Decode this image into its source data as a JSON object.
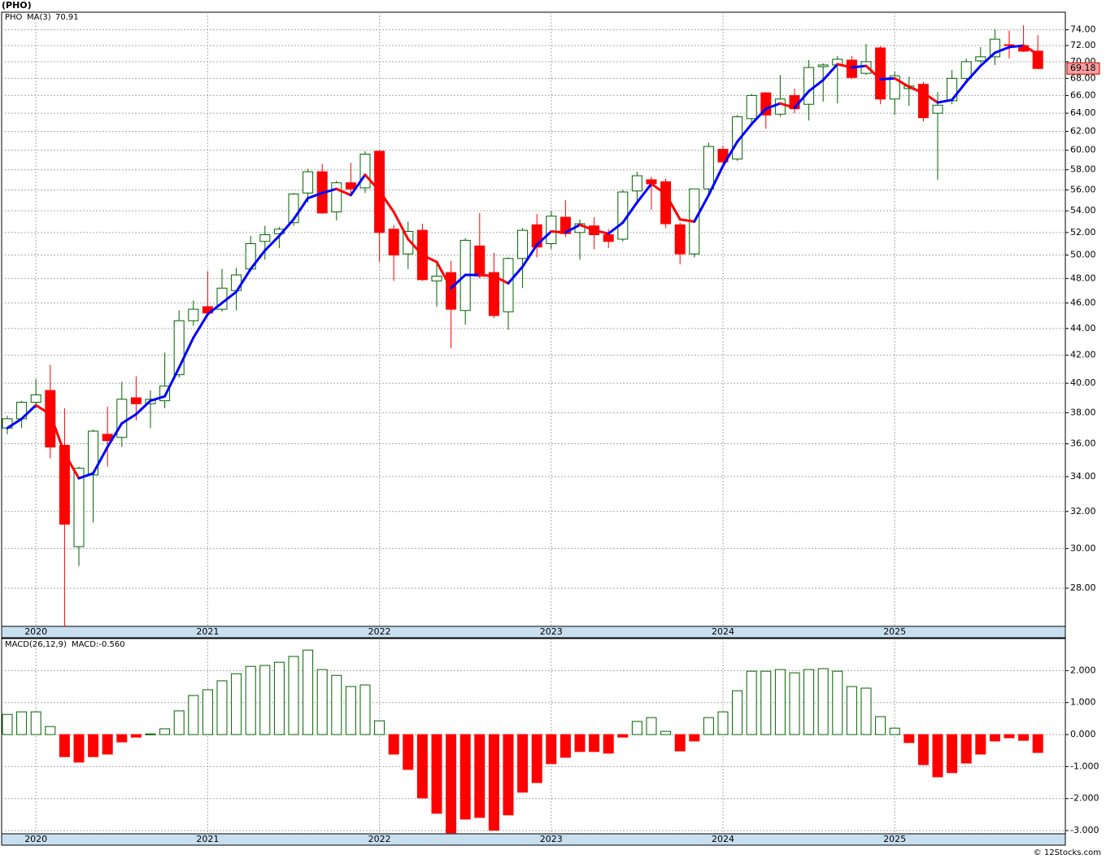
{
  "chart_data": [
    {
      "type": "candlestick",
      "title": "(PHO)",
      "name": "PHO",
      "name_color": "#008000",
      "categories": [
        null,
        null,
        "2020",
        null,
        null,
        null,
        null,
        null,
        null,
        null,
        null,
        null,
        null,
        null,
        "2021",
        null,
        null,
        null,
        null,
        null,
        null,
        null,
        null,
        null,
        null,
        null,
        "2022",
        null,
        null,
        null,
        null,
        null,
        null,
        null,
        null,
        null,
        null,
        null,
        "2023",
        null,
        null,
        null,
        null,
        null,
        null,
        null,
        null,
        null,
        null,
        null,
        "2024",
        null,
        null,
        null,
        null,
        null,
        null,
        null,
        null,
        null,
        null,
        null,
        "2025",
        null,
        null,
        null,
        null,
        null,
        null,
        null,
        null,
        null,
        null
      ],
      "open": [
        37.0,
        37.6,
        38.7,
        39.5,
        35.9,
        30.1,
        34.1,
        36.6,
        36.4,
        39.0,
        38.6,
        38.8,
        40.6,
        44.6,
        45.7,
        45.5,
        47.0,
        48.8,
        51.2,
        51.9,
        52.9,
        55.7,
        57.8,
        53.9,
        56.7,
        56.2,
        59.9,
        52.3,
        50.1,
        52.2,
        47.8,
        48.5,
        45.4,
        50.8,
        48.5,
        45.3,
        49.7,
        52.7,
        51.0,
        53.4,
        52.0,
        52.6,
        51.8,
        51.4,
        55.9,
        57.0,
        56.8,
        52.7,
        50.1,
        56.1,
        60.1,
        59.1,
        63.4,
        66.3,
        63.9,
        66.0,
        65.0,
        69.4,
        69.6,
        70.2,
        68.6,
        71.7,
        65.6,
        66.8,
        67.3,
        64.0,
        65.4,
        68.0,
        70.1,
        70.6,
        72.1,
        72.0,
        71.3
      ],
      "high": [
        37.8,
        38.8,
        40.3,
        41.3,
        38.3,
        34.6,
        36.9,
        38.4,
        40.1,
        40.5,
        39.5,
        42.2,
        45.4,
        46.2,
        48.6,
        48.8,
        48.9,
        51.7,
        52.6,
        52.5,
        55.7,
        58.1,
        58.6,
        56.9,
        58.7,
        59.9,
        60.0,
        52.7,
        53.0,
        52.8,
        49.3,
        49.5,
        51.5,
        53.8,
        50.2,
        49.8,
        52.4,
        53.7,
        54.0,
        55.0,
        53.2,
        53.4,
        52.3,
        56.0,
        57.8,
        57.3,
        57.1,
        52.9,
        56.1,
        60.8,
        60.5,
        63.8,
        66.2,
        66.4,
        68.4,
        66.8,
        70.2,
        69.8,
        70.7,
        70.7,
        72.2,
        71.9,
        68.8,
        68.2,
        67.6,
        66.4,
        69.0,
        70.4,
        71.8,
        74.1,
        73.9,
        74.6,
        73.3
      ],
      "low": [
        36.6,
        37.0,
        38.3,
        35.1,
        25.9,
        29.1,
        31.4,
        34.6,
        35.8,
        37.5,
        37.0,
        38.3,
        40.4,
        44.2,
        44.9,
        45.3,
        45.4,
        48.6,
        49.6,
        50.6,
        52.6,
        54.8,
        53.7,
        53.1,
        55.7,
        55.7,
        49.4,
        47.8,
        48.8,
        47.8,
        45.7,
        42.5,
        44.3,
        48.0,
        44.8,
        43.9,
        47.2,
        49.8,
        50.5,
        51.6,
        49.6,
        50.5,
        50.6,
        51.2,
        54.6,
        54.1,
        52.4,
        49.2,
        49.8,
        55.6,
        58.5,
        58.9,
        62.6,
        62.3,
        63.6,
        64.0,
        63.2,
        65.3,
        65.1,
        67.9,
        68.4,
        65.0,
        63.8,
        64.8,
        63.1,
        57.0,
        65.0,
        67.8,
        69.8,
        69.6,
        70.4,
        71.2,
        69.1
      ],
      "close": [
        37.6,
        38.7,
        39.2,
        35.8,
        31.3,
        34.5,
        36.8,
        36.2,
        38.9,
        38.6,
        38.9,
        39.8,
        44.6,
        45.5,
        45.2,
        47.2,
        48.3,
        51.0,
        51.8,
        52.3,
        55.6,
        57.8,
        53.8,
        56.7,
        56.1,
        59.6,
        52.0,
        50.0,
        52.1,
        47.9,
        48.2,
        45.5,
        51.3,
        48.2,
        45.0,
        49.7,
        52.2,
        50.7,
        53.5,
        51.9,
        52.8,
        51.8,
        51.2,
        55.8,
        57.4,
        56.6,
        52.8,
        50.1,
        56.1,
        60.4,
        58.8,
        63.6,
        66.0,
        63.8,
        65.6,
        64.5,
        69.3,
        69.6,
        70.3,
        68.1,
        70.0,
        65.6,
        68.3,
        67.1,
        63.5,
        64.9,
        68.0,
        70.0,
        70.6,
        72.8,
        72.0,
        71.3,
        69.18
      ],
      "up_color": "#006400",
      "down_color": "#ff0000",
      "last_label_fill": "#f4a0a0",
      "series": [
        {
          "name": "MA(3)",
          "color": "#0000ff",
          "up_color": "#0000ff",
          "down_color": "#ff0000",
          "values": [
            37.0,
            37.6,
            38.5,
            37.9,
            35.4,
            33.9,
            34.2,
            35.8,
            37.3,
            37.9,
            38.8,
            39.1,
            41.1,
            43.3,
            45.1,
            46.0,
            46.9,
            48.8,
            50.4,
            51.7,
            53.2,
            55.2,
            55.7,
            56.1,
            55.5,
            57.5,
            55.9,
            53.9,
            51.4,
            50.0,
            49.4,
            47.2,
            48.3,
            48.3,
            48.2,
            47.6,
            49.0,
            50.9,
            52.1,
            52.0,
            52.7,
            52.2,
            51.9,
            52.9,
            54.8,
            56.6,
            55.6,
            53.2,
            53.0,
            55.5,
            58.4,
            60.9,
            62.8,
            64.5,
            65.1,
            64.6,
            66.5,
            67.8,
            69.7,
            69.3,
            69.5,
            67.9,
            68.0,
            67.0,
            66.3,
            65.2,
            65.5,
            67.6,
            69.5,
            71.1,
            71.8,
            72.0,
            70.91
          ]
        }
      ],
      "log_scale": true,
      "grid": true,
      "ylim": [
        26.2,
        76.3
      ],
      "yticks": [
        {
          "value": 28,
          "label": "28.00"
        },
        {
          "value": 30,
          "label": "30.00"
        },
        {
          "value": 32,
          "label": "32.00"
        },
        {
          "value": 34,
          "label": "34.00"
        },
        {
          "value": 36,
          "label": "36.00"
        },
        {
          "value": 38,
          "label": "38.00"
        },
        {
          "value": 40,
          "label": "40.00"
        },
        {
          "value": 42,
          "label": "42.00"
        },
        {
          "value": 44,
          "label": "44.00"
        },
        {
          "value": 46,
          "label": "46.00"
        },
        {
          "value": 48,
          "label": "48.00"
        },
        {
          "value": 50,
          "label": "50.00"
        },
        {
          "value": 52,
          "label": "52.00"
        },
        {
          "value": 54,
          "label": "54.00"
        },
        {
          "value": 56,
          "label": "56.00"
        },
        {
          "value": 58,
          "label": "58.00"
        },
        {
          "value": 60,
          "label": "60.00"
        },
        {
          "value": 62,
          "label": "62.00"
        },
        {
          "value": 64,
          "label": "64.00"
        },
        {
          "value": 66,
          "label": "66.00"
        },
        {
          "value": 68,
          "label": "68.00"
        },
        {
          "value": 70,
          "label": "70.00"
        },
        {
          "value": 72,
          "label": "72.00"
        },
        {
          "value": 74,
          "label": "74.00"
        }
      ]
    },
    {
      "type": "bar",
      "categories": [
        null,
        null,
        "2020",
        null,
        null,
        null,
        null,
        null,
        null,
        null,
        null,
        null,
        null,
        null,
        "2021",
        null,
        null,
        null,
        null,
        null,
        null,
        null,
        null,
        null,
        null,
        null,
        "2022",
        null,
        null,
        null,
        null,
        null,
        null,
        null,
        null,
        null,
        null,
        null,
        "2023",
        null,
        null,
        null,
        null,
        null,
        null,
        null,
        null,
        null,
        null,
        null,
        "2024",
        null,
        null,
        null,
        null,
        null,
        null,
        null,
        null,
        null,
        null,
        null,
        "2025",
        null,
        null,
        null,
        null,
        null,
        null,
        null,
        null,
        null,
        null
      ],
      "series": [
        {
          "name": "MACD(26,12,9)",
          "up_color": "#006400",
          "down_color": "#ff0000",
          "values": [
            0.63,
            0.71,
            0.71,
            0.25,
            -0.69,
            -0.86,
            -0.69,
            -0.61,
            -0.23,
            -0.08,
            0.02,
            0.18,
            0.74,
            1.22,
            1.4,
            1.68,
            1.9,
            2.13,
            2.16,
            2.26,
            2.44,
            2.64,
            2.03,
            1.85,
            1.5,
            1.55,
            0.43,
            -0.61,
            -1.09,
            -1.98,
            -2.46,
            -3.07,
            -2.64,
            -2.59,
            -2.99,
            -2.51,
            -1.8,
            -1.5,
            -0.91,
            -0.71,
            -0.53,
            -0.53,
            -0.58,
            -0.08,
            0.41,
            0.53,
            0.1,
            -0.51,
            -0.2,
            0.53,
            0.71,
            1.37,
            1.98,
            1.98,
            2.03,
            1.93,
            2.03,
            2.06,
            1.98,
            1.5,
            1.45,
            0.56,
            0.2,
            -0.25,
            -0.94,
            -1.32,
            -1.19,
            -0.89,
            -0.61,
            -0.2,
            -0.1,
            -0.18,
            -0.56
          ]
        }
      ],
      "annotation": "MACD:-0.560",
      "annotation_color": "#0000ff",
      "grid": true,
      "ylim": [
        -3.1,
        3.0
      ],
      "yticks": [
        {
          "value": -3,
          "label": "-3.000"
        },
        {
          "value": -2,
          "label": "-2.000"
        },
        {
          "value": -1,
          "label": "-1.000"
        },
        {
          "value": 0,
          "label": "0.000"
        },
        {
          "value": 1,
          "label": "1.000"
        },
        {
          "value": 2,
          "label": "2.000"
        }
      ]
    }
  ],
  "footer": "© 12Stocks.com"
}
